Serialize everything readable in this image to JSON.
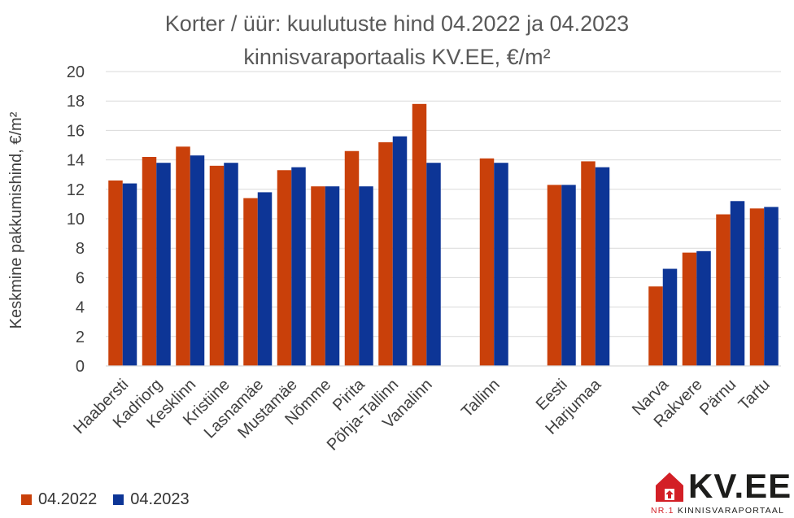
{
  "colors": {
    "series1": "#c9400a",
    "series2": "#0d3596",
    "grid": "#d9d9d9",
    "text": "#404040",
    "logo_red": "#d31f26"
  },
  "chart_data": {
    "type": "bar",
    "title": "Korter / üür: kuulutuste hind 04.2022 ja 04.2023",
    "subtitle": "kinnisvaraportaalis KV.EE, €/m²",
    "ylabel": "Keskmine pakkumishind, €/m²",
    "xlabel": "",
    "ylim": [
      0,
      20
    ],
    "yticks": [
      0,
      2,
      4,
      6,
      8,
      10,
      12,
      14,
      16,
      18,
      20
    ],
    "grid": true,
    "legend": "bottom-left",
    "categories": [
      "Haabersti",
      "Kadriorg",
      "Kesklinn",
      "Kristiine",
      "Lasnamäe",
      "Mustamäe",
      "Nõmme",
      "Pirita",
      "Põhja-Tallinn",
      "Vanalinn",
      "",
      "Tallinn",
      "",
      "Eesti",
      "Harjumaa",
      "",
      "Narva",
      "Rakvere",
      "Pärnu",
      "Tartu"
    ],
    "series": [
      {
        "name": "04.2022",
        "values": [
          12.6,
          14.2,
          14.9,
          13.6,
          11.4,
          13.3,
          12.2,
          14.6,
          15.2,
          17.8,
          null,
          14.1,
          null,
          12.3,
          13.9,
          null,
          5.4,
          7.7,
          10.3,
          10.7
        ]
      },
      {
        "name": "04.2023",
        "values": [
          12.4,
          13.8,
          14.3,
          13.8,
          11.8,
          13.5,
          12.2,
          12.2,
          15.6,
          13.8,
          null,
          13.8,
          null,
          12.3,
          13.5,
          null,
          6.6,
          7.8,
          11.2,
          10.8
        ]
      }
    ]
  },
  "logo": {
    "main": "KV.EE",
    "sub_prefix": "NR.1",
    "sub_text": "KINNISVARAPORTAAL"
  }
}
